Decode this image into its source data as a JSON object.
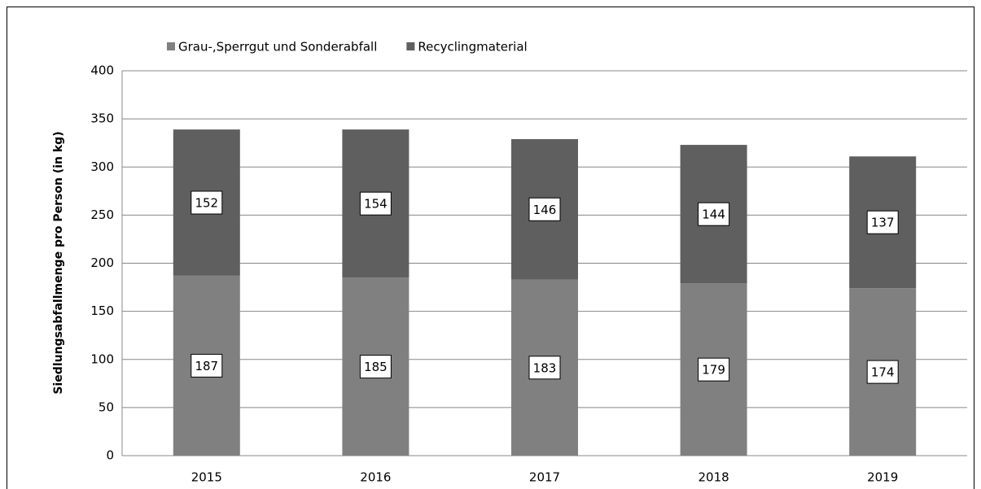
{
  "chart_data": {
    "type": "stacked_bar",
    "y_label": "Siedlungsabfallmenge pro Person (in kg)",
    "categories": [
      "2015",
      "2016",
      "2017",
      "2018",
      "2019"
    ],
    "series": [
      {
        "name": "Grau-,Sperrgut und Sonderabfall",
        "color": "#808080",
        "values": [
          187,
          185,
          183,
          179,
          174
        ]
      },
      {
        "name": "Recyclingmaterial",
        "color": "#5f5f5f",
        "values": [
          152,
          154,
          146,
          144,
          137
        ]
      }
    ],
    "ylim": [
      0,
      400
    ],
    "yticks": [
      0,
      50,
      100,
      150,
      200,
      250,
      300,
      350,
      400
    ],
    "grid": true,
    "legend": "top"
  }
}
